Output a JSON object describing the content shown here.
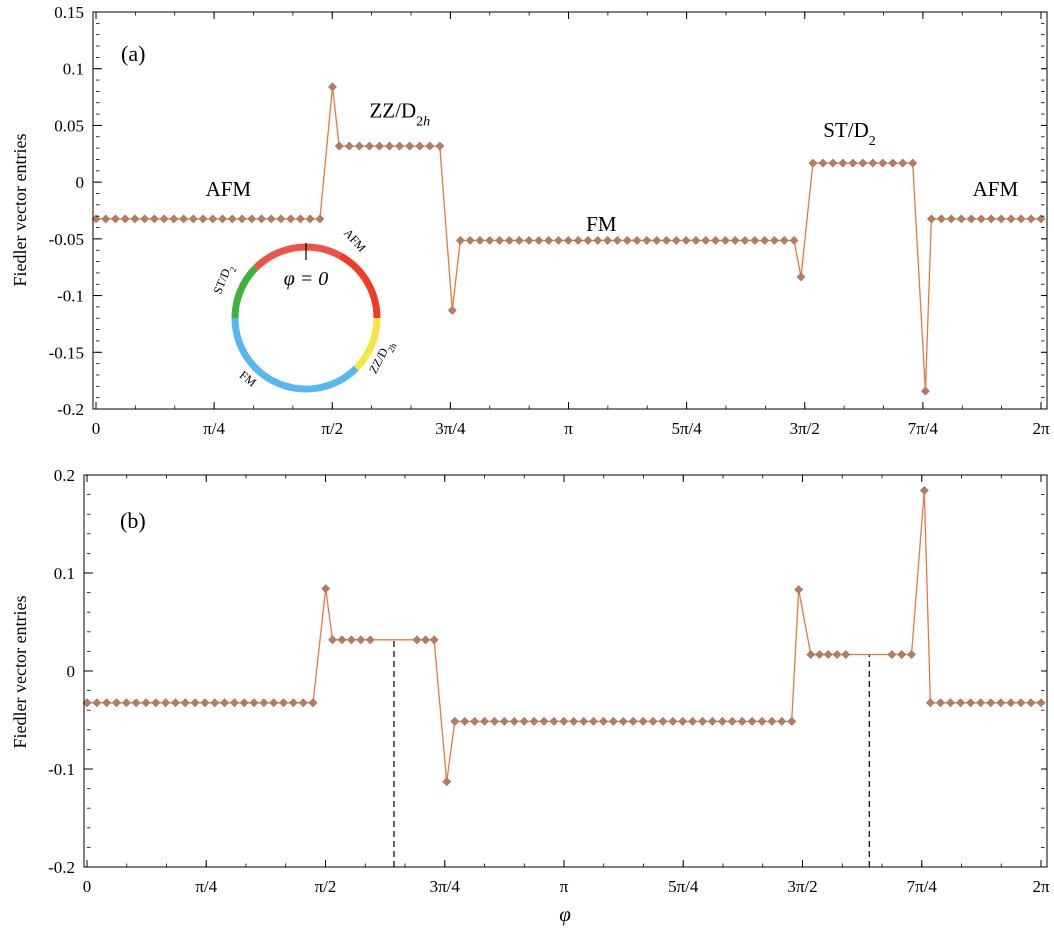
{
  "figure": {
    "xlabel": "φ",
    "ylabel": "Fiedler vector entries",
    "line_color": "#e8793f",
    "marker_color": "#b97b5e"
  },
  "chart_data": [
    {
      "panel": "(a)",
      "type": "line",
      "xlabel": "",
      "ylabel": "Fiedler vector entries",
      "xlim": [
        0,
        6.2832
      ],
      "ylim": [
        -0.2,
        0.15
      ],
      "xticks": [
        {
          "value": 0,
          "label": "0"
        },
        {
          "value": 0.7854,
          "label": "π/4"
        },
        {
          "value": 1.5708,
          "label": "π/2"
        },
        {
          "value": 2.3562,
          "label": "3π/4"
        },
        {
          "value": 3.1416,
          "label": "π"
        },
        {
          "value": 3.927,
          "label": "5π/4"
        },
        {
          "value": 4.7124,
          "label": "3π/2"
        },
        {
          "value": 5.4978,
          "label": "7π/4"
        },
        {
          "value": 6.2832,
          "label": "2π"
        }
      ],
      "yticks": [
        {
          "value": 0.15,
          "label": "0.15"
        },
        {
          "value": 0.1,
          "label": "0.1"
        },
        {
          "value": 0.05,
          "label": "0.05"
        },
        {
          "value": 0,
          "label": "0"
        },
        {
          "value": -0.05,
          "label": "-0.05"
        },
        {
          "value": -0.1,
          "label": "-0.1"
        },
        {
          "value": -0.15,
          "label": "-0.15"
        },
        {
          "value": -0.2,
          "label": "-0.2"
        }
      ],
      "series": [
        {
          "segments": [
            {
              "from": 0,
              "to": 1.4887,
              "y": -0.0324
            },
            {
              "x": 1.5722,
              "y": 0.084
            },
            {
              "from": 1.6172,
              "to": 2.2862,
              "y": 0.0318
            },
            {
              "x": 2.3692,
              "y": -0.113
            },
            {
              "from": 2.4225,
              "to": 4.6415,
              "y": -0.0514
            },
            {
              "x": 4.6873,
              "y": -0.0835
            },
            {
              "from": 4.7669,
              "to": 5.4304,
              "y": 0.0168
            },
            {
              "x": 5.5149,
              "y": -0.1842
            },
            {
              "from": 5.5546,
              "to": 6.2832,
              "y": -0.0324
            }
          ]
        }
      ],
      "annotations": [
        {
          "text": "AFM",
          "x": 0.88,
          "y": -0.012
        },
        {
          "text": "ZZ/D2h",
          "x": 2.02,
          "y": 0.057
        },
        {
          "text": "FM",
          "x": 3.36,
          "y": -0.043
        },
        {
          "text": "ST/D2",
          "x": 5.01,
          "y": 0.04
        },
        {
          "text": "AFM",
          "x": 5.98,
          "y": -0.012
        }
      ],
      "inset": {
        "center_label": "φ = 0",
        "ring": [
          {
            "label": "AFM",
            "from": 0,
            "to": 0.5,
            "color": "#ef5348"
          },
          {
            "label": "AFM",
            "from": 0.5,
            "to": 1.571,
            "color": "#f03c24"
          },
          {
            "label": "ZZ/D2h",
            "from": 1.571,
            "to": 2.356,
            "color": "#f7e63f"
          },
          {
            "label": "FM",
            "from": 2.356,
            "to": 4.712,
            "color": "#56b8f2"
          },
          {
            "label": "ST/D2",
            "from": 4.712,
            "to": 5.498,
            "color": "#3db337"
          },
          {
            "label": "AFM",
            "from": 5.498,
            "to": 6.283,
            "color": "#ef5348"
          }
        ]
      }
    },
    {
      "panel": "(b)",
      "type": "line",
      "xlabel": "φ",
      "ylabel": "Fiedler vector entries",
      "xlim": [
        0,
        6.2832
      ],
      "ylim": [
        -0.2,
        0.2
      ],
      "xticks": [
        {
          "value": 0,
          "label": "0"
        },
        {
          "value": 0.7854,
          "label": "π/4"
        },
        {
          "value": 1.5708,
          "label": "π/2"
        },
        {
          "value": 2.3562,
          "label": "3π/4"
        },
        {
          "value": 3.1416,
          "label": "π"
        },
        {
          "value": 3.927,
          "label": "5π/4"
        },
        {
          "value": 4.7124,
          "label": "3π/2"
        },
        {
          "value": 5.4978,
          "label": "7π/4"
        },
        {
          "value": 6.2832,
          "label": "2π"
        }
      ],
      "yticks": [
        {
          "value": 0.2,
          "label": "0.2"
        },
        {
          "value": 0.1,
          "label": "0.1"
        },
        {
          "value": 0,
          "label": "0"
        },
        {
          "value": -0.1,
          "label": "-0.1"
        },
        {
          "value": -0.2,
          "label": "-0.2"
        }
      ],
      "series": [
        {
          "segments": [
            {
              "from": 0,
              "to": 1.4887,
              "y": -0.0324
            },
            {
              "x": 1.5722,
              "y": 0.084
            },
            {
              "from": 1.6172,
              "to": 1.8659,
              "y": 0.0318
            },
            {
              "gap_to": 2.1733
            },
            {
              "from": 2.1733,
              "to": 2.2862,
              "y": 0.0318
            },
            {
              "x": 2.3692,
              "y": -0.113
            },
            {
              "from": 2.4225,
              "to": 4.6415,
              "y": -0.0514
            },
            {
              "x": 4.6873,
              "y": 0.083
            },
            {
              "from": 4.7669,
              "to": 4.9976,
              "y": 0.0168
            },
            {
              "gap_to": 5.3009
            },
            {
              "from": 5.3009,
              "to": 5.4304,
              "y": 0.0168
            },
            {
              "x": 5.5149,
              "y": 0.1842
            },
            {
              "from": 5.5546,
              "to": 6.2832,
              "y": -0.0324
            }
          ]
        }
      ],
      "reference_lines": [
        {
          "x": 2.0219,
          "y_from": -0.2,
          "y_to": 0.0318
        },
        {
          "x": 5.1522,
          "y_from": -0.2,
          "y_to": 0.0168
        }
      ]
    }
  ]
}
